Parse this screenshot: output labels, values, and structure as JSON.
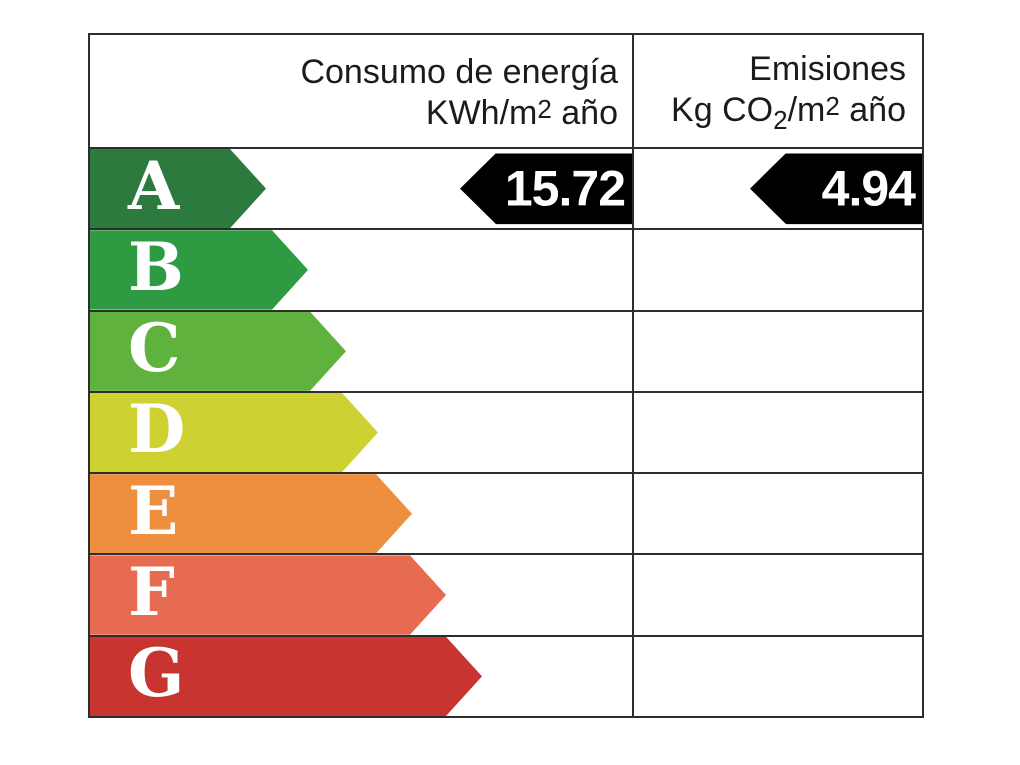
{
  "header": {
    "consumption": {
      "line1": "Consumo de energía",
      "unit_pre": "KWh/m",
      "unit_exp": "2",
      "unit_post": " año"
    },
    "emissions": {
      "line1": "Emisiones",
      "unit_pre": "Kg CO",
      "unit_sub": "2",
      "unit_mid": "/m",
      "unit_exp": "2",
      "unit_post": " año"
    }
  },
  "ratings": [
    {
      "letter": "A",
      "color": "#2c7a3e"
    },
    {
      "letter": "B",
      "color": "#2e9b43"
    },
    {
      "letter": "C",
      "color": "#60b23e"
    },
    {
      "letter": "D",
      "color": "#cdd232"
    },
    {
      "letter": "E",
      "color": "#ee8f3f"
    },
    {
      "letter": "F",
      "color": "#e66b51"
    },
    {
      "letter": "G",
      "color": "#c83531"
    }
  ],
  "indicators": {
    "rated_class": "A",
    "consumption_value": "15.72",
    "emissions_value": "4.94",
    "arrow_color": "#000000",
    "text_color": "#ffffff"
  },
  "chart_data": {
    "type": "table",
    "columns": [
      "Consumo de energía KWh/m2 año",
      "Emisiones Kg CO2/m2 año"
    ],
    "scale": [
      "A",
      "B",
      "C",
      "D",
      "E",
      "F",
      "G"
    ],
    "rated_class": "A",
    "values": {
      "consumo_kwh_m2_ano": 15.72,
      "emisiones_kg_co2_m2_ano": 4.94
    },
    "legend_position": "none",
    "grid": true
  }
}
